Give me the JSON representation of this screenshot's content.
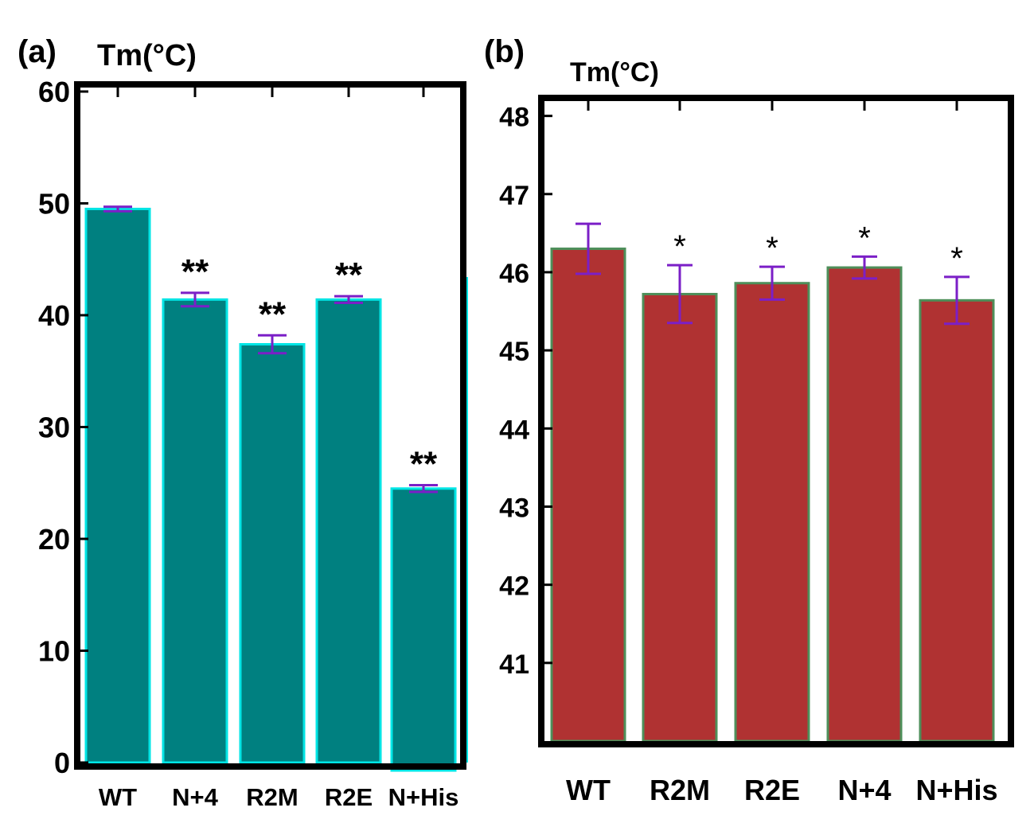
{
  "chart_data": [
    {
      "type": "bar",
      "panel_label": "(a)",
      "ylabel": "Tm(°C)",
      "categories": [
        "WT",
        "N+4",
        "R2M",
        "R2E",
        "N+His"
      ],
      "values": [
        49.5,
        41.4,
        37.4,
        41.4,
        24.5
      ],
      "errors": [
        0.2,
        0.6,
        0.8,
        0.3,
        0.3
      ],
      "significance": [
        "",
        "**",
        "**",
        "**",
        "**"
      ],
      "ylim": [
        0,
        60
      ],
      "yticks": [
        0,
        10,
        20,
        30,
        40,
        50,
        60
      ],
      "bar_color": "#008080",
      "edge_color": "#00e5e5",
      "error_color": "#7b1fc7"
    },
    {
      "type": "bar",
      "panel_label": "(b)",
      "ylabel": "Tm(°C)",
      "categories": [
        "WT",
        "R2M",
        "R2E",
        "N+4",
        "N+His"
      ],
      "values": [
        46.3,
        45.72,
        45.86,
        46.06,
        45.64
      ],
      "errors": [
        0.32,
        0.37,
        0.21,
        0.14,
        0.3
      ],
      "significance": [
        "",
        "*",
        "*",
        "*",
        "*"
      ],
      "ylim": [
        40,
        48.2
      ],
      "yticks": [
        41,
        42,
        43,
        44,
        45,
        46,
        47,
        48
      ],
      "bar_color": "#b03232",
      "edge_color": "#4e8f5a",
      "error_color": "#7b1fc7"
    }
  ]
}
